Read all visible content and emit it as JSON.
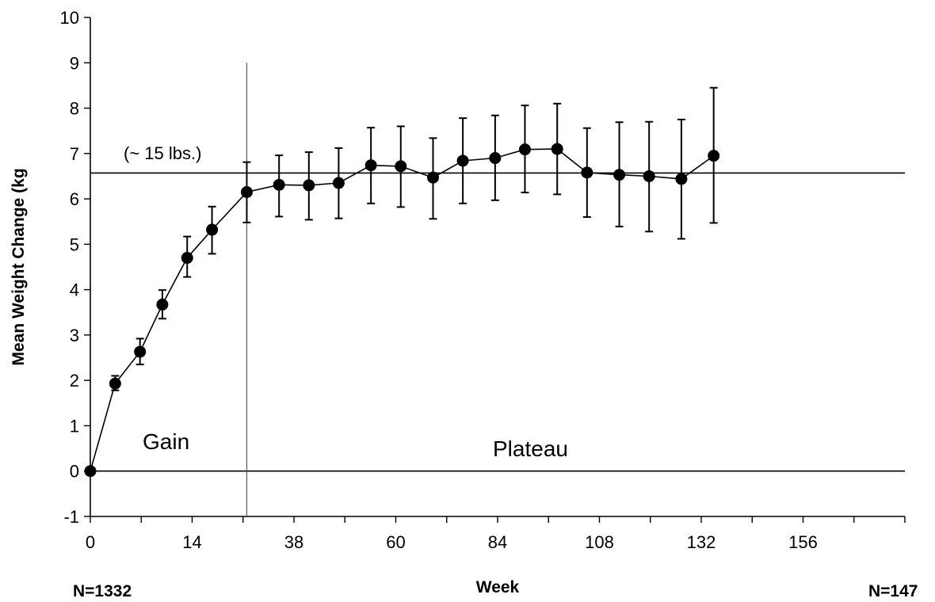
{
  "chart_data": {
    "type": "line",
    "title": "",
    "xlabel": "Week",
    "ylabel": "Mean Weight Change (kg",
    "xlim": [
      0,
      164
    ],
    "ylim": [
      -1,
      10
    ],
    "x_ticks": [
      0,
      14,
      38,
      60,
      84,
      108,
      132,
      156
    ],
    "y_ticks": [
      -1,
      0,
      1,
      2,
      3,
      4,
      5,
      6,
      7,
      8,
      9,
      10
    ],
    "grid": false,
    "series": [
      {
        "points": [
          {
            "x": 0,
            "y": 0.0,
            "err_low": 0.0,
            "err_high": 0.0
          },
          {
            "x": 5,
            "y": 1.93,
            "err_low": 1.78,
            "err_high": 2.1
          },
          {
            "x": 10,
            "y": 2.63,
            "err_low": 2.35,
            "err_high": 2.92
          },
          {
            "x": 14.5,
            "y": 3.67,
            "err_low": 3.36,
            "err_high": 3.99
          },
          {
            "x": 19.5,
            "y": 4.7,
            "err_low": 4.28,
            "err_high": 5.17
          },
          {
            "x": 24.5,
            "y": 5.32,
            "err_low": 4.79,
            "err_high": 5.83
          },
          {
            "x": 31.5,
            "y": 6.15,
            "err_low": 5.48,
            "err_high": 6.81
          },
          {
            "x": 38,
            "y": 6.31,
            "err_low": 5.61,
            "err_high": 6.96
          },
          {
            "x": 44,
            "y": 6.3,
            "err_low": 5.54,
            "err_high": 7.03
          },
          {
            "x": 50,
            "y": 6.35,
            "err_low": 5.57,
            "err_high": 7.12
          },
          {
            "x": 56.5,
            "y": 6.74,
            "err_low": 5.9,
            "err_high": 7.57
          },
          {
            "x": 62.5,
            "y": 6.72,
            "err_low": 5.82,
            "err_high": 7.6
          },
          {
            "x": 69,
            "y": 6.47,
            "err_low": 5.56,
            "err_high": 7.34
          },
          {
            "x": 75,
            "y": 6.84,
            "err_low": 5.9,
            "err_high": 7.78
          },
          {
            "x": 81.5,
            "y": 6.9,
            "err_low": 5.97,
            "err_high": 7.84
          },
          {
            "x": 87.5,
            "y": 7.09,
            "err_low": 6.14,
            "err_high": 8.06
          },
          {
            "x": 94,
            "y": 7.1,
            "err_low": 6.1,
            "err_high": 8.1
          },
          {
            "x": 100,
            "y": 6.58,
            "err_low": 5.6,
            "err_high": 7.56
          },
          {
            "x": 106.5,
            "y": 6.53,
            "err_low": 5.39,
            "err_high": 7.69
          },
          {
            "x": 112.5,
            "y": 6.5,
            "err_low": 5.28,
            "err_high": 7.7
          },
          {
            "x": 119,
            "y": 6.44,
            "err_low": 5.12,
            "err_high": 7.75
          },
          {
            "x": 125.5,
            "y": 6.95,
            "err_low": 5.47,
            "err_high": 8.45
          }
        ]
      }
    ],
    "reference_line_y": 6.57,
    "divider_x": 31.5,
    "annotations": {
      "lbs_label": "(~ 15 lbs.)",
      "gain_label": "Gain",
      "plateau_label": "Plateau",
      "n_start": "N=1332",
      "n_end": "N=147"
    }
  }
}
